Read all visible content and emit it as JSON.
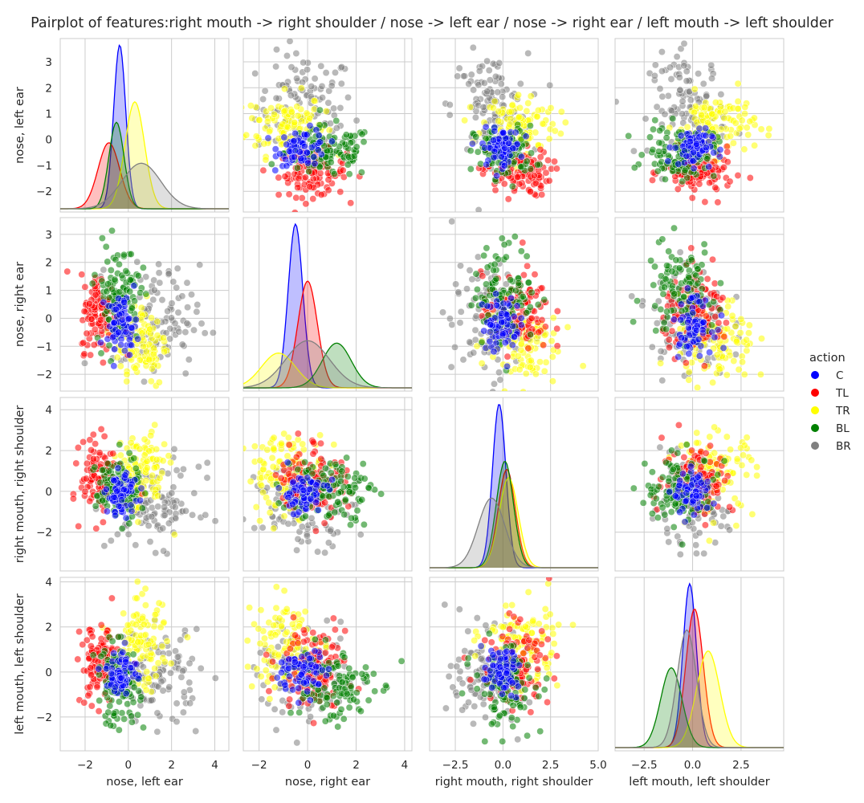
{
  "chart_data": {
    "type": "scatter",
    "subtype": "pairplot",
    "title": "Pairplot of features:right mouth -> right shoulder / nose -> left ear / nose -> right ear / left mouth -> left shoulder",
    "variables": [
      {
        "key": "nle",
        "label": "nose, left ear",
        "lim": [
          -3.15,
          4.65
        ],
        "ticks": [
          -2,
          0,
          2,
          4
        ],
        "tick_labels": [
          "−2",
          "0",
          "2",
          "4"
        ],
        "ylim": [
          -2.8,
          3.9
        ],
        "yticks": [
          -2,
          -1,
          0,
          1,
          2,
          3
        ],
        "ytick_labels": [
          "−2",
          "−1",
          "0",
          "1",
          "2",
          "3"
        ]
      },
      {
        "key": "nre",
        "label": "nose, right ear",
        "lim": [
          -2.65,
          4.3
        ],
        "ticks": [
          -2,
          0,
          2,
          4
        ],
        "tick_labels": [
          "−2",
          "0",
          "2",
          "4"
        ],
        "ylim": [
          -2.6,
          3.6
        ],
        "yticks": [
          -2,
          -1,
          0,
          1,
          2,
          3
        ],
        "ytick_labels": [
          "−2",
          "−1",
          "0",
          "1",
          "2",
          "3"
        ]
      },
      {
        "key": "rmrs",
        "label": "right mouth, right shoulder",
        "lim": [
          -3.85,
          5.0
        ],
        "ticks": [
          -2.5,
          0.0,
          2.5,
          5.0
        ],
        "tick_labels": [
          "−2.5",
          "0.0",
          "2.5",
          "5.0"
        ],
        "ylim": [
          -3.9,
          4.6
        ],
        "yticks": [
          -2,
          0,
          2,
          4
        ],
        "ytick_labels": [
          "−2",
          "0",
          "2",
          "4"
        ]
      },
      {
        "key": "lmls",
        "label": "left mouth, left shoulder",
        "lim": [
          -4.0,
          4.7
        ],
        "ticks": [
          -2.5,
          0.0,
          2.5
        ],
        "tick_labels": [
          "−2.5",
          "0.0",
          "2.5"
        ],
        "ylim": [
          -3.5,
          4.2
        ],
        "yticks": [
          -2,
          0,
          2,
          4
        ],
        "ytick_labels": [
          "−2",
          "0",
          "2",
          "4"
        ]
      }
    ],
    "legend": {
      "title": "action",
      "placement": "right",
      "entries": [
        {
          "name": "C",
          "color": "#0000ff"
        },
        {
          "name": "TL",
          "color": "#ff0000"
        },
        {
          "name": "TR",
          "color": "#ffff00"
        },
        {
          "name": "BL",
          "color": "#008000"
        },
        {
          "name": "BR",
          "color": "#808080"
        }
      ]
    },
    "diagonal": "kde",
    "kde_note": "approximate peak positions per class, in data units of each variable",
    "kde": {
      "nle": {
        "C": {
          "mu": -0.4,
          "sigma": 0.28,
          "peak": 3.6
        },
        "TL": {
          "mu": -0.9,
          "sigma": 0.5,
          "peak": 1.45
        },
        "TR": {
          "mu": 0.3,
          "sigma": 0.45,
          "peak": 2.35
        },
        "BL": {
          "mu": -0.55,
          "sigma": 0.35,
          "peak": 1.9
        },
        "BR": {
          "mu": 0.6,
          "sigma": 0.9,
          "peak": 1.0
        }
      },
      "nre": {
        "C": {
          "mu": -0.5,
          "sigma": 0.3,
          "peak": 3.3
        },
        "TL": {
          "mu": 0.0,
          "sigma": 0.4,
          "peak": 2.15
        },
        "TR": {
          "mu": -1.2,
          "sigma": 0.7,
          "peak": 0.7
        },
        "BL": {
          "mu": 1.2,
          "sigma": 0.6,
          "peak": 0.9
        },
        "BR": {
          "mu": 0.0,
          "sigma": 0.9,
          "peak": 0.95
        }
      },
      "rmrs": {
        "C": {
          "mu": -0.2,
          "sigma": 0.35,
          "peak": 4.0
        },
        "TL": {
          "mu": 0.2,
          "sigma": 0.45,
          "peak": 2.4
        },
        "TR": {
          "mu": 0.3,
          "sigma": 0.5,
          "peak": 2.2
        },
        "BL": {
          "mu": 0.1,
          "sigma": 0.45,
          "peak": 2.6
        },
        "BR": {
          "mu": -0.6,
          "sigma": 0.7,
          "peak": 1.7
        }
      },
      "lmls": {
        "C": {
          "mu": -0.15,
          "sigma": 0.35,
          "peak": 3.9
        },
        "TL": {
          "mu": 0.1,
          "sigma": 0.45,
          "peak": 3.3
        },
        "TR": {
          "mu": 0.8,
          "sigma": 0.6,
          "peak": 2.3
        },
        "BL": {
          "mu": -1.1,
          "sigma": 0.55,
          "peak": 1.9
        },
        "BR": {
          "mu": -0.3,
          "sigma": 0.5,
          "peak": 2.8
        }
      }
    },
    "scatter_clusters_note": "representative point clouds per class (approximate centers/spreads in data units of the two variables)",
    "clusters": {
      "nle": {
        "C": [
          -0.3,
          0.35
        ],
        "TL": [
          -1.3,
          0.45
        ],
        "TR": [
          0.6,
          0.6
        ],
        "BL": [
          -0.5,
          0.5
        ],
        "BR": [
          1.3,
          1.0
        ]
      },
      "nre": {
        "C": [
          -0.2,
          0.5
        ],
        "TL": [
          0.2,
          0.7
        ],
        "TR": [
          -0.9,
          0.8
        ],
        "BL": [
          0.9,
          0.9
        ],
        "BR": [
          -0.1,
          1.0
        ]
      },
      "rmrs": {
        "C": [
          -0.1,
          0.5
        ],
        "TL": [
          0.7,
          0.9
        ],
        "TR": [
          0.9,
          1.0
        ],
        "BL": [
          0.1,
          0.8
        ],
        "BR": [
          -0.7,
          1.0
        ]
      },
      "lmls": {
        "C": [
          0.0,
          0.5
        ],
        "TL": [
          0.3,
          0.9
        ],
        "TR": [
          1.2,
          1.0
        ],
        "BL": [
          -0.6,
          0.9
        ],
        "BR": [
          -0.2,
          1.0
        ]
      }
    }
  }
}
